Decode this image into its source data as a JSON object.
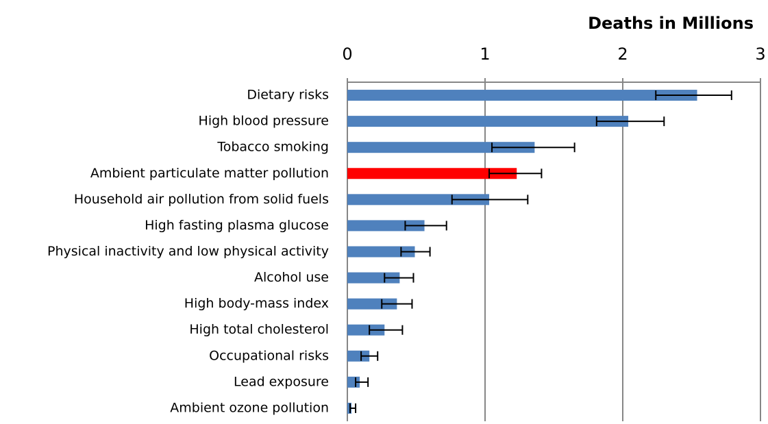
{
  "chart_data": {
    "type": "bar",
    "orientation": "horizontal",
    "title": "Deaths in Millions",
    "categories": [
      "Dietary risks",
      "High blood pressure",
      "Tobacco smoking",
      "Ambient particulate matter pollution",
      "Household air pollution from solid fuels",
      "High fasting plasma glucose",
      "Physical inactivity and low physical activity",
      "Alcohol use",
      "High body-mass index",
      "High total cholesterol",
      "Occupational risks",
      "Lead exposure",
      "Ambient ozone pollution"
    ],
    "values": [
      2.54,
      2.04,
      1.36,
      1.23,
      1.03,
      0.56,
      0.49,
      0.38,
      0.36,
      0.27,
      0.16,
      0.09,
      0.03
    ],
    "lower": [
      2.24,
      1.81,
      1.05,
      1.03,
      0.76,
      0.42,
      0.39,
      0.27,
      0.25,
      0.16,
      0.1,
      0.06,
      0.02
    ],
    "upper": [
      2.79,
      2.3,
      1.65,
      1.41,
      1.31,
      0.72,
      0.6,
      0.48,
      0.47,
      0.4,
      0.22,
      0.15,
      0.06
    ],
    "colors": [
      "#4f81bd",
      "#4f81bd",
      "#4f81bd",
      "#ff0000",
      "#4f81bd",
      "#4f81bd",
      "#4f81bd",
      "#4f81bd",
      "#4f81bd",
      "#4f81bd",
      "#4f81bd",
      "#4f81bd",
      "#4f81bd"
    ],
    "xlim": [
      0,
      3
    ],
    "xticks": [
      0,
      1,
      2,
      3
    ],
    "grid": true
  }
}
